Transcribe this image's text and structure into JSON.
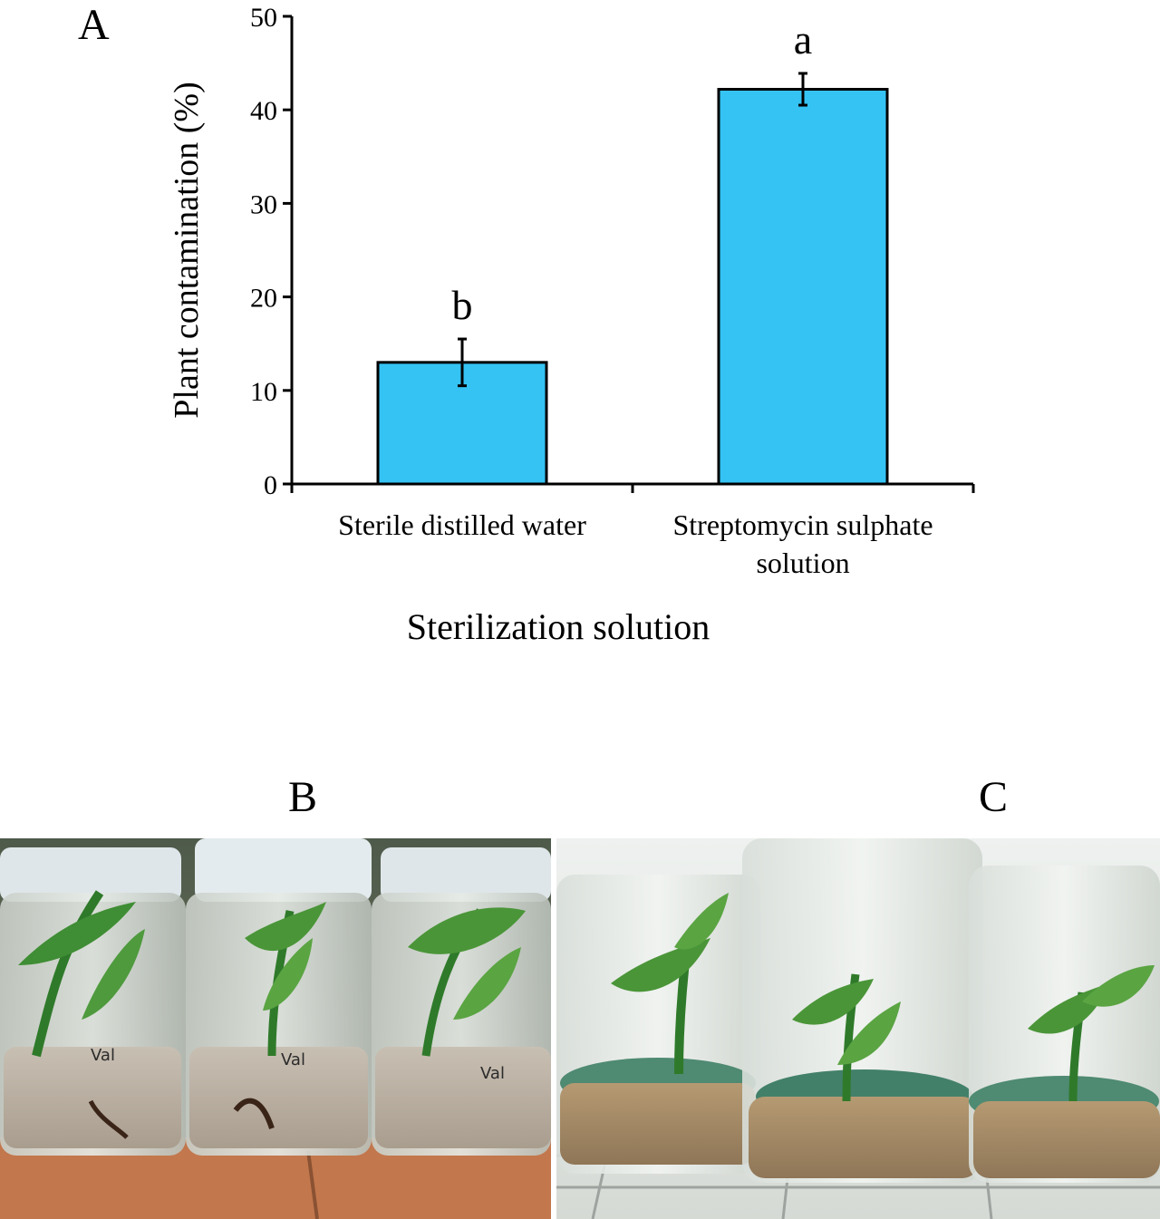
{
  "panels": {
    "a": "A",
    "b": "B",
    "c": "C"
  },
  "chart_data": {
    "type": "bar",
    "categories": [
      [
        "Sterile distilled water"
      ],
      [
        "Streptomycin sulphate",
        "solution"
      ]
    ],
    "values": [
      13,
      42.2
    ],
    "error": [
      2.5,
      1.7
    ],
    "significance": [
      "b",
      "a"
    ],
    "bar_color": "#35c3f3",
    "xlabel": "Sterilization solution",
    "ylabel": "Plant contamination (%)",
    "ylim": [
      0,
      50
    ],
    "yticks": [
      0,
      10,
      20,
      30,
      40,
      50
    ],
    "grid": false
  },
  "photos": {
    "b": {
      "subject": "three sterile jars with banana plantlets in sand",
      "labels": [
        "Val",
        "Val",
        "Val"
      ]
    },
    "c": {
      "subject": "three contaminated jars with banana plantlets and green mold"
    }
  }
}
